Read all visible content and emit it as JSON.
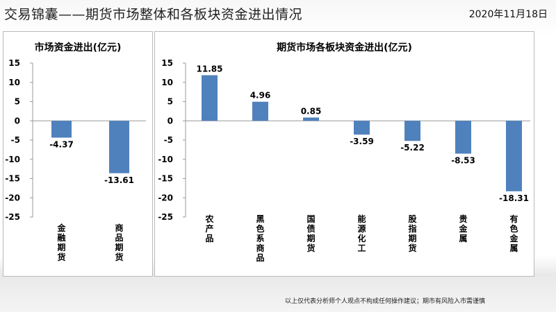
{
  "header": {
    "title": "交易锦囊——期货市场整体和各板块资金进出情况",
    "date": "2020年11月18日"
  },
  "footer": {
    "disclaimer": "以上仅代表分析师个人观点不构成任何操作建议；期市有风险入市需谨慎"
  },
  "colors": {
    "bar": "#4f81bd",
    "axis": "#999999"
  },
  "chart_data": [
    {
      "type": "bar",
      "title": "市场资金进出(亿元)",
      "categories": [
        "金融期货",
        "商品期货"
      ],
      "values": [
        -4.37,
        -13.61
      ],
      "value_labels": [
        "-4.37",
        "-13.61"
      ],
      "ylim": [
        -25,
        15
      ],
      "yticks": [
        "15",
        "10",
        "5",
        "0",
        "-5",
        "-10",
        "-15",
        "-20",
        "-25"
      ],
      "grid": false
    },
    {
      "type": "bar",
      "title": "期货市场各板块资金进出(亿元)",
      "categories": [
        "农产品",
        "黑色系商品",
        "国债期货",
        "能源化工",
        "股指期货",
        "贵金属",
        "有色金属"
      ],
      "values": [
        11.85,
        4.96,
        0.85,
        -3.59,
        -5.22,
        -8.53,
        -18.31
      ],
      "value_labels": [
        "11.85",
        "4.96",
        "0.85",
        "-3.59",
        "-5.22",
        "-8.53",
        "-18.31"
      ],
      "ylim": [
        -25,
        15
      ],
      "yticks": [
        "15",
        "10",
        "5",
        "0",
        "-5",
        "-10",
        "-15",
        "-20",
        "-25"
      ],
      "grid": false
    }
  ]
}
